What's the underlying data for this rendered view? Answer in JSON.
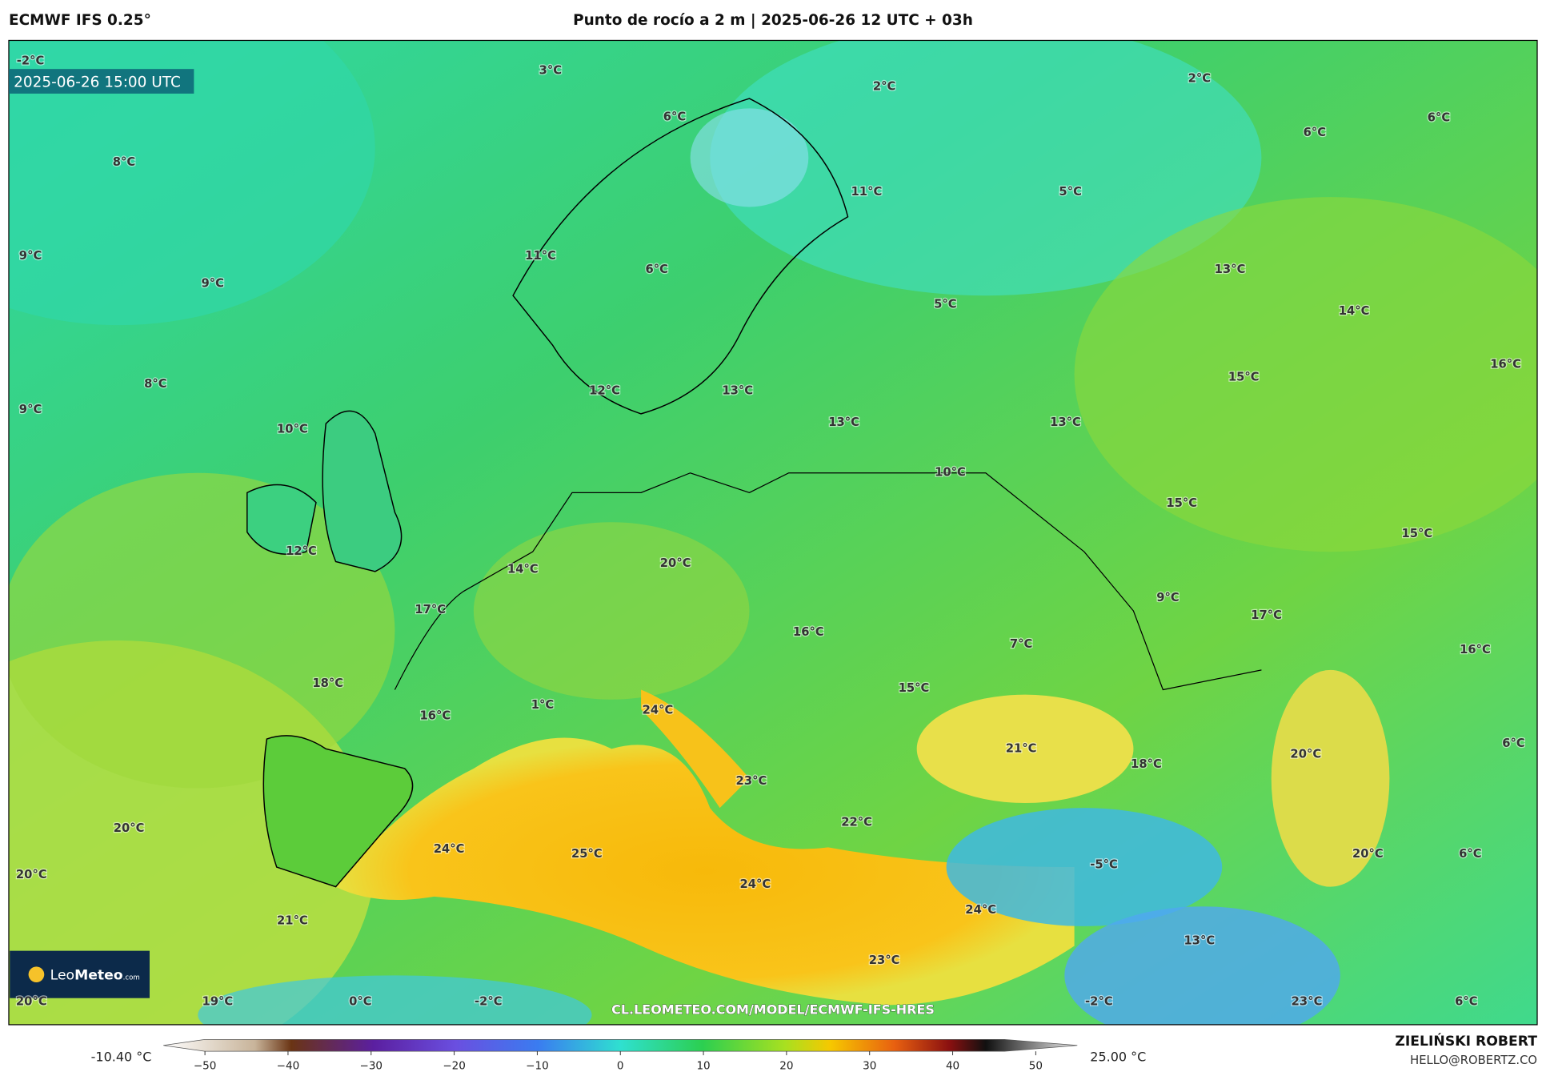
{
  "header": {
    "model": "ECMWF IFS 0.25°",
    "title": "Punto de rocío a 2 m | 2025-06-26 12 UTC + 03h"
  },
  "map": {
    "valid_time": "2025-06-26 15:00 UTC",
    "labels": [
      "-2°C",
      "3°C",
      "2°C",
      "2°C",
      "6°C",
      "6°C",
      "6°C",
      "8°C",
      "11°C",
      "5°C",
      "9°C",
      "11°C",
      "6°C",
      "9°C",
      "13°C",
      "5°C",
      "14°C",
      "16°C",
      "8°C",
      "15°C",
      "12°C",
      "13°C",
      "9°C",
      "10°C",
      "13°C",
      "13°C",
      "10°C",
      "15°C",
      "15°C",
      "12°C",
      "14°C",
      "20°C",
      "9°C",
      "17°C",
      "16°C",
      "17°C",
      "7°C",
      "16°C",
      "18°C",
      "15°C",
      "1°C",
      "24°C",
      "16°C",
      "21°C",
      "18°C",
      "20°C",
      "6°C",
      "23°C",
      "22°C",
      "20°C",
      "24°C",
      "25°C",
      "-5°C",
      "20°C",
      "6°C",
      "20°C",
      "24°C",
      "24°C",
      "21°C",
      "13°C",
      "23°C",
      "20°C",
      "19°C",
      "0°C",
      "-2°C",
      "-2°C",
      "23°C",
      "6°C"
    ],
    "watermark": "CL.LEOMETEO.COM/MODEL/ECMWF-IFS-HRES",
    "logo": [
      "Leo",
      "Meteo",
      ".com"
    ]
  },
  "colorbar": {
    "min_label": "-10.40 °C",
    "max_label": "25.00 °C",
    "lim": [
      -55,
      55
    ],
    "ticks": [
      {
        "value": -50,
        "label": "−50"
      },
      {
        "value": -40,
        "label": "−40"
      },
      {
        "value": -30,
        "label": "−30"
      },
      {
        "value": -20,
        "label": "−20"
      },
      {
        "value": -10,
        "label": "−10"
      },
      0,
      10,
      20,
      30,
      40,
      50
    ]
  },
  "footer": {
    "author": "ZIELIŃSKI ROBERT",
    "contact": "HELLO@ROBERTZ.CO"
  }
}
